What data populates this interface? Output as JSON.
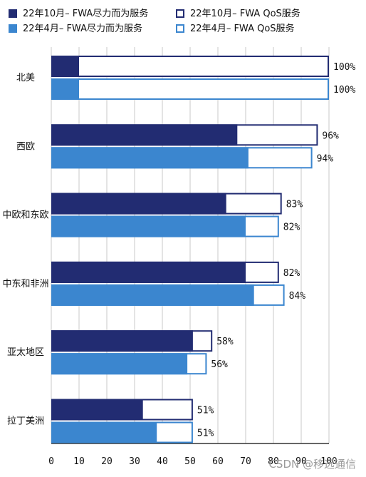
{
  "chart_data": {
    "type": "bar",
    "orientation": "horizontal",
    "categories": [
      "北美",
      "西欧",
      "中欧和东欧",
      "中东和非洲",
      "亚太地区",
      "拉丁美洲"
    ],
    "series": [
      {
        "name": "22年10月– FWA尽力而为服务",
        "values": [
          10,
          67,
          63,
          70,
          51,
          33
        ],
        "color": "#222c72",
        "style": "filled"
      },
      {
        "name": "22年4月– FWA尽力而为服务",
        "values": [
          10,
          71,
          70,
          73,
          49,
          38
        ],
        "color": "#3b86cf",
        "style": "filled"
      },
      {
        "name": "22年10月– FWA QoS服务",
        "values": [
          90,
          29,
          20,
          12,
          7,
          18
        ],
        "color": "#222c72",
        "style": "outline"
      },
      {
        "name": "22年4月– FWA QoS服务",
        "values": [
          90,
          23,
          12,
          11,
          7,
          13
        ],
        "color": "#3b86cf",
        "style": "outline"
      }
    ],
    "totals_labels": {
      "oct": [
        "100%",
        "96%",
        "83%",
        "82%",
        "58%",
        "51%"
      ],
      "apr": [
        "100%",
        "94%",
        "82%",
        "84%",
        "56%",
        "51%"
      ]
    },
    "xlim": [
      0,
      100
    ],
    "xticks": [
      "0",
      "10",
      "20",
      "30",
      "40",
      "50",
      "60",
      "70",
      "80",
      "90",
      "100"
    ],
    "grid": "vertical",
    "legend_position": "top"
  },
  "watermark": "CSDN @移远通信"
}
